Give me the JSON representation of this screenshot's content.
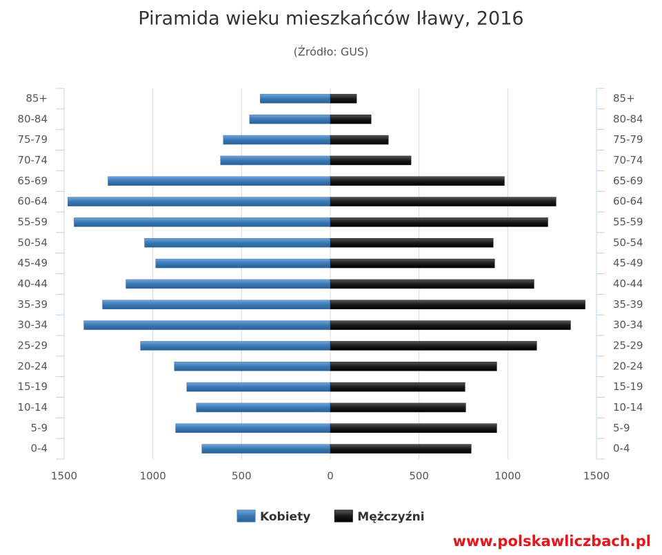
{
  "chart_data": {
    "type": "pyramid",
    "title": "Piramida wieku mieszkańców Iławy, 2016",
    "subtitle": "(Źródło: GUS)",
    "categories": [
      "85+",
      "80-84",
      "75-79",
      "70-74",
      "65-69",
      "60-64",
      "55-59",
      "50-54",
      "45-49",
      "40-44",
      "35-39",
      "30-34",
      "25-29",
      "20-24",
      "15-19",
      "10-14",
      "5-9",
      "0-4"
    ],
    "series": [
      {
        "name": "Kobiety",
        "color": "#3a78b5",
        "values": [
          -395,
          -455,
          -603,
          -619,
          -1253,
          -1479,
          -1444,
          -1047,
          -984,
          -1152,
          -1284,
          -1389,
          -1070,
          -879,
          -809,
          -755,
          -872,
          -724
        ]
      },
      {
        "name": "Mężczyźni",
        "color": "#1a1a1a",
        "values": [
          148,
          230,
          327,
          455,
          981,
          1272,
          1226,
          918,
          926,
          1148,
          1436,
          1354,
          1163,
          938,
          759,
          763,
          938,
          794
        ]
      }
    ],
    "xlim": [
      -1500,
      1500
    ],
    "xticks": [
      {
        "value": -1500,
        "label": "1500"
      },
      {
        "value": -1000,
        "label": "1000"
      },
      {
        "value": -500,
        "label": "500"
      },
      0,
      500,
      1000,
      1500
    ],
    "grid": true,
    "legend": "bottom"
  },
  "footer": "www.polskawliczbach.pl"
}
